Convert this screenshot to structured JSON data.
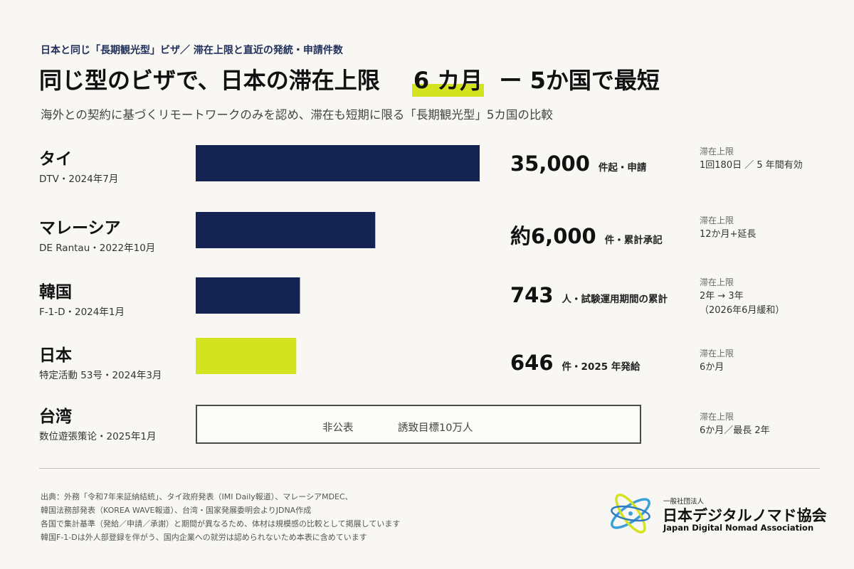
{
  "header": {
    "eyebrow": "日本と同じ「長期観光型」ビザ／ 滞在上限と直近の発統・申請件数",
    "headline_pre": "同じ型のビザで、日本の滞在上限",
    "headline_highlight": "6 カ月",
    "headline_post": "ー 5か国で最短",
    "subheading": "海外との契約に基づくリモートワークのみを認め、滞在も短期に限る「長期観光型」5カ国の比較"
  },
  "chart_data": {
    "type": "bar",
    "orientation": "horizontal",
    "grid": false,
    "categories": [
      "タイ",
      "マレーシア",
      "韓国",
      "日本",
      "台湾"
    ],
    "values": [
      35000,
      6000,
      743,
      646,
      null
    ],
    "accent_colors": {
      "default": "#142352",
      "highlight": "#d4e31f"
    }
  },
  "rows": [
    {
      "name": "タイ",
      "sub": "DTV・2024年7月",
      "value": "35,000",
      "unit": "件起・申請",
      "limit_label": "滞在上限",
      "limit_lines": [
        "1回180日 ／ 5 年間有効"
      ]
    },
    {
      "name": "マレーシア",
      "sub": "DE Rantau・2022年10月",
      "value": "約6,000",
      "unit": "件・累計承記",
      "limit_label": "滞在上限",
      "limit_lines": [
        "12か月+延長"
      ]
    },
    {
      "name": "韓国",
      "sub": "F-1-D・2024年1月",
      "value": "743",
      "unit": "人・試験運用期間の累計",
      "limit_label": "滞在上限",
      "limit_lines": [
        "2年 → 3年",
        "（2026年6月緩和）"
      ]
    },
    {
      "name": "日本",
      "sub": "特定活動 53号・2024年3月",
      "value": "646",
      "unit": "件・2025 年発給",
      "limit_label": "滞在上限",
      "limit_lines": [
        "6か月"
      ]
    },
    {
      "name": "台湾",
      "sub": "数位遊張策论・2025年1月",
      "value": "",
      "unit": "",
      "limit_label": "滞在上限",
      "limit_lines": [
        "6か月／最長 2年"
      ]
    }
  ],
  "pending": {
    "status": "非公表",
    "target": "誘致目標10万人"
  },
  "sources": [
    "出典：外務「令和7年来証納結統」、タイ政府発表（IMI Daily報道）、マレーシアMDEC、",
    "韓国法務部発表（KOREA WAVE報道）、台湾・国家発展委明会よりJDNA作成",
    "各国で集計基準（発給／申請／承謝）と期間が異なるため、体材は規模感の比較として掲展しています",
    "韓国F-1-Dは外人部登録を伴がう、国内企業への就労は認められないため本表に含めています"
  ],
  "logo": {
    "small": "一般社団法人",
    "ja": "日本デジタルノマド協会",
    "en": "Japan Digital Nomad Association"
  }
}
